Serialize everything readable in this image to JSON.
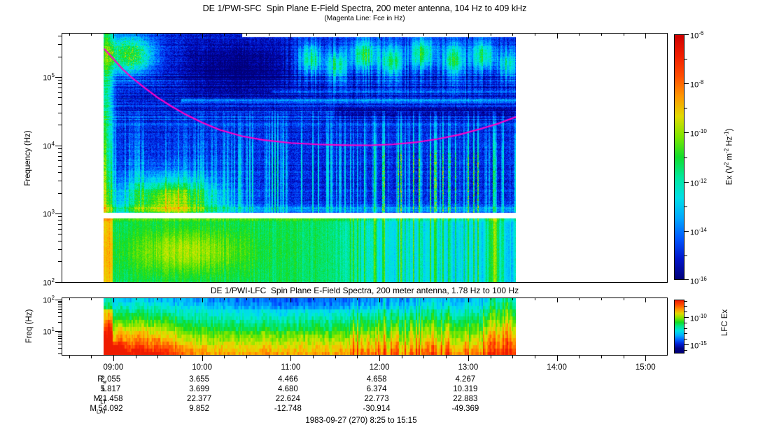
{
  "header": {
    "title": "DE 1/PWI-SFC  Spin Plane E-Field Spectra, 200 meter antenna, 104 Hz to 409 kHz",
    "subtitle": "(Magenta Line: Fce in Hz)"
  },
  "lfc_header": {
    "title": "DE 1/PWI-LFC  Spin Plane E-Field Spectra, 200 meter antenna, 1.78 Hz to 100 Hz"
  },
  "footer": {
    "text": "1983-09-27 (270) 8:25 to 15:15"
  },
  "colors": {
    "fce_line": "#ff00c8",
    "axis": "#000000",
    "background": "#ffffff",
    "colormap_top": "#cd0000",
    "colormap_bottom": "#000078"
  },
  "chart_data": [
    {
      "type": "heatmap",
      "name": "sfc_spectrogram",
      "instrument": "DE 1/PWI-SFC",
      "title": "DE 1/PWI-SFC  Spin Plane E-Field Spectra, 200 meter antenna, 104 Hz to 409 kHz",
      "subtitle": "(Magenta Line: Fce in Hz)",
      "ylabel": "Frequency (Hz)",
      "y_scale": "log",
      "y_range_hz": [
        100,
        409000
      ],
      "y_tick_labels": [
        "10^5",
        "10^4",
        "10^3",
        "10^2"
      ],
      "x_scale": "time",
      "x_range": [
        "8:25",
        "15:15"
      ],
      "x_tick_labels": [
        "09:00",
        "10:00",
        "11:00",
        "12:00",
        "13:00",
        "14:00",
        "15:00"
      ],
      "data_time_span": [
        "8:53",
        "13:32"
      ],
      "white_gap_band_hz": [
        880,
        1080
      ],
      "colorbar": {
        "label": "Ex (V^2 m^-2 Hz^-1)",
        "scale": "log",
        "range": [
          1e-16,
          1e-06
        ],
        "tick_labels": [
          "10^-6",
          "10^-8",
          "10^-10",
          "10^-12",
          "10^-14",
          "10^-16"
        ]
      },
      "fce_line": {
        "label": "Fce in Hz",
        "color": "#ff00c8",
        "points_t_hz": [
          [
            8.9,
            255000
          ],
          [
            9.0,
            185000
          ],
          [
            9.1,
            132000
          ],
          [
            9.2,
            100000
          ],
          [
            9.35,
            70000
          ],
          [
            9.5,
            50000
          ],
          [
            9.65,
            37500
          ],
          [
            9.8,
            29000
          ],
          [
            10.0,
            21500
          ],
          [
            10.2,
            16800
          ],
          [
            10.45,
            13600
          ],
          [
            10.7,
            11900
          ],
          [
            11.0,
            10800
          ],
          [
            11.3,
            10300
          ],
          [
            11.6,
            10050
          ],
          [
            11.9,
            10000
          ],
          [
            12.15,
            10300
          ],
          [
            12.4,
            11000
          ],
          [
            12.65,
            12300
          ],
          [
            12.9,
            14300
          ],
          [
            13.15,
            17500
          ],
          [
            13.35,
            21000
          ],
          [
            13.54,
            26000
          ]
        ]
      },
      "features": [
        "green auroral emission cluster near 200-400 kHz at 08:55-09:30",
        "patchy green AKR bursts 80-400 kHz from about 10:45 to 13:30",
        "royal blue low-intensity background 3-80 kHz",
        "bright green/yellow funnel-shaped blob 1-5 kHz from 09:10 to 11:00",
        "dense vertical green streaks 0.3-30 kHz from 11:40 to 13:30",
        "continuous green band with yellow core 100-900 Hz strongest 09:10-11:30",
        "white data gap band near 1 kHz separating SFC bands"
      ]
    },
    {
      "type": "heatmap",
      "name": "lfc_spectrogram",
      "instrument": "DE 1/PWI-LFC",
      "title": "DE 1/PWI-LFC  Spin Plane E-Field Spectra, 200 meter antenna, 1.78 Hz to 100 Hz",
      "ylabel": "Freq (Hz)",
      "y_scale": "log",
      "y_range_hz": [
        1.78,
        100
      ],
      "y_tick_labels": [
        "10^2",
        "10^1"
      ],
      "x_scale": "time",
      "x_range": [
        "8:25",
        "15:15"
      ],
      "data_time_span": [
        "8:53",
        "13:32"
      ],
      "colorbar": {
        "label": "LFC Ex",
        "scale": "log",
        "tick_labels": [
          "10^-10",
          "10^-15"
        ]
      },
      "features": [
        "intensity increases toward lowest frequencies (red at 2-4 Hz)",
        "intense red column at data start 08:53-09:00",
        "orange/yellow wedge below 10 Hz until about 09:40",
        "green-cyan quieter interval 10:00-11:40",
        "yellow-orange vertical streaks 11:40-13:05",
        "intense red-orange interval near 13:05-13:30"
      ]
    }
  ],
  "ephemeris": {
    "time_ticks": [
      "09:00",
      "10:00",
      "11:00",
      "12:00",
      "13:00",
      "14:00",
      "15:00"
    ],
    "rows": [
      {
        "label": "R",
        "subscript": "e",
        "values": [
          "2.055",
          "3.655",
          "4.466",
          "4.658",
          "4.267"
        ]
      },
      {
        "label": "L",
        "subscript": "",
        "values": [
          "5.817",
          "3.699",
          "4.680",
          "6.374",
          "10.319"
        ]
      },
      {
        "label": "M",
        "subscript": "LT",
        "values": [
          "21.458",
          "22.377",
          "22.624",
          "22.773",
          "22.883"
        ]
      },
      {
        "label": "M",
        "subscript": "LAT",
        "values": [
          "54.092",
          "9.852",
          "-12.748",
          "-30.914",
          "-49.369"
        ]
      }
    ]
  }
}
